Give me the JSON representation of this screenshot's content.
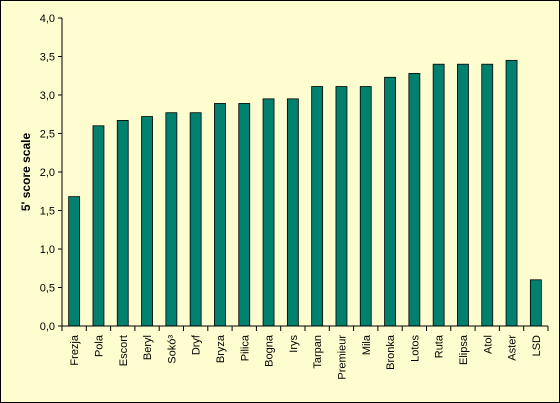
{
  "chart_data": {
    "type": "bar",
    "title": "",
    "xlabel": "",
    "ylabel": "5' score scale",
    "ylim": [
      0,
      4
    ],
    "yticks": [
      "0,0",
      "0,5",
      "1,0",
      "1,5",
      "2,0",
      "2,5",
      "3,0",
      "3,5",
      "4,0"
    ],
    "grid": false,
    "legend": "none",
    "bar_color": "#00806f",
    "categories": [
      "Frezja",
      "Pola",
      "Escort",
      "Beryl",
      "Sokó³",
      "Dryf",
      "Bryza",
      "Pilica",
      "Bogna",
      "Irys",
      "Tarpan",
      "Premieur",
      "Mila",
      "Bronka",
      "Lotos",
      "Ruta",
      "Elipsa",
      "Atol",
      "Aster",
      "LSD"
    ],
    "values": [
      1.68,
      2.6,
      2.67,
      2.72,
      2.77,
      2.77,
      2.89,
      2.89,
      2.95,
      2.95,
      3.11,
      3.11,
      3.11,
      3.23,
      3.28,
      3.4,
      3.4,
      3.4,
      3.45,
      0.6
    ]
  }
}
